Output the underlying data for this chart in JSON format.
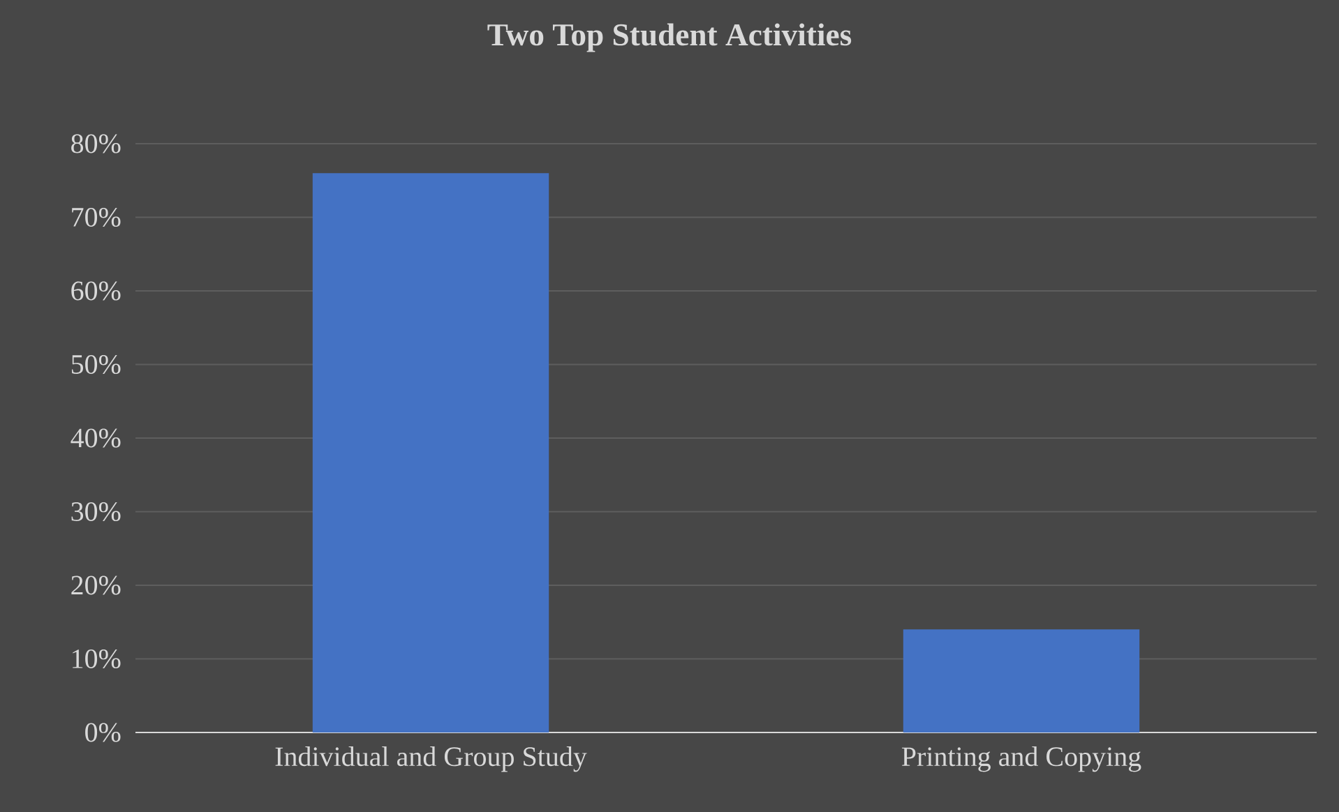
{
  "chart_data": {
    "type": "bar",
    "title": "Two Top Student Activities",
    "categories": [
      "Individual and Group Study",
      "Printing and Copying"
    ],
    "values": [
      76,
      14
    ],
    "color": "#4472c4",
    "ylim": [
      0,
      80
    ],
    "yticks": [
      {
        "value": 0,
        "label": "0%"
      },
      {
        "value": 10,
        "label": "10%"
      },
      {
        "value": 20,
        "label": "20%"
      },
      {
        "value": 30,
        "label": "30%"
      },
      {
        "value": 40,
        "label": "40%"
      },
      {
        "value": 50,
        "label": "50%"
      },
      {
        "value": 60,
        "label": "60%"
      },
      {
        "value": 70,
        "label": "70%"
      },
      {
        "value": 80,
        "label": "80%"
      }
    ],
    "grid": "y"
  }
}
